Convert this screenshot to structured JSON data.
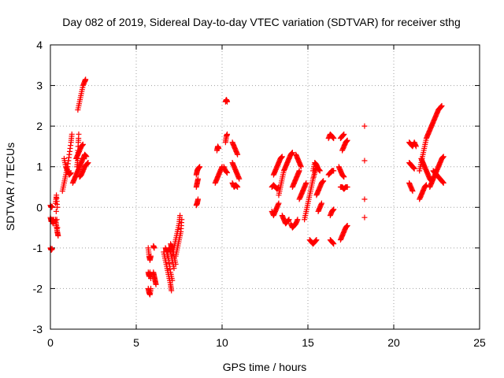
{
  "chart_data": {
    "type": "scatter",
    "title": "Day 082 of 2019, Sidereal Day-to-day VTEC variation (SDTVAR) for receiver sthg",
    "xlabel": "GPS time / hours",
    "ylabel": "SDTVAR / TECUs",
    "xlim": [
      0,
      25
    ],
    "ylim": [
      -3,
      4
    ],
    "xticks": [
      "0",
      "5",
      "10",
      "15",
      "20",
      "25"
    ],
    "yticks": [
      "-3",
      "-2",
      "-1",
      "0",
      "1",
      "2",
      "3",
      "4"
    ],
    "grid": true,
    "marker": "+",
    "color": "#ff0000",
    "segments": [
      [
        [
          0.0,
          -0.25
        ],
        [
          0.05,
          -0.35
        ],
        [
          0.1,
          -0.3
        ],
        [
          0.15,
          -0.4
        ],
        [
          0.2,
          -0.3
        ]
      ],
      [
        [
          0.0,
          0.05
        ],
        [
          0.05,
          0.0
        ],
        [
          0.1,
          0.02
        ]
      ],
      [
        [
          0.0,
          -1.0
        ],
        [
          0.05,
          -1.05
        ],
        [
          0.1,
          -1.02
        ]
      ],
      [
        [
          0.3,
          -0.3
        ],
        [
          0.35,
          -0.45
        ],
        [
          0.4,
          -0.6
        ],
        [
          0.45,
          -0.7
        ],
        [
          0.3,
          0.1
        ],
        [
          0.35,
          0.3
        ],
        [
          0.4,
          0.0
        ]
      ],
      [
        [
          0.7,
          0.4
        ],
        [
          0.8,
          0.6
        ],
        [
          0.9,
          0.8
        ],
        [
          1.0,
          1.0
        ],
        [
          1.1,
          1.3
        ],
        [
          1.2,
          1.6
        ],
        [
          1.25,
          1.8
        ]
      ],
      [
        [
          0.8,
          1.2
        ],
        [
          0.9,
          1.0
        ],
        [
          1.0,
          0.9
        ],
        [
          1.1,
          0.8
        ],
        [
          1.2,
          0.85
        ]
      ],
      [
        [
          1.3,
          0.6
        ],
        [
          1.4,
          0.7
        ],
        [
          1.5,
          0.8
        ],
        [
          1.6,
          0.9
        ],
        [
          1.7,
          1.0
        ],
        [
          1.8,
          1.1
        ],
        [
          1.9,
          1.2
        ],
        [
          2.0,
          1.3
        ],
        [
          2.1,
          1.25
        ]
      ],
      [
        [
          1.6,
          1.4
        ],
        [
          1.65,
          1.8
        ],
        [
          1.6,
          1.2
        ],
        [
          1.55,
          1.0
        ]
      ],
      [
        [
          1.5,
          1.2
        ],
        [
          1.6,
          1.3
        ],
        [
          1.7,
          1.4
        ],
        [
          1.8,
          1.5
        ],
        [
          1.9,
          1.55
        ]
      ],
      [
        [
          1.7,
          0.75
        ],
        [
          1.8,
          0.8
        ],
        [
          1.9,
          0.9
        ],
        [
          2.0,
          1.0
        ],
        [
          2.1,
          1.05
        ],
        [
          2.2,
          1.1
        ]
      ],
      [
        [
          1.6,
          2.4
        ],
        [
          1.7,
          2.6
        ],
        [
          1.8,
          2.8
        ],
        [
          1.9,
          3.0
        ],
        [
          2.0,
          3.1
        ],
        [
          2.05,
          3.15
        ]
      ],
      [
        [
          5.7,
          -1.0
        ],
        [
          5.75,
          -1.2
        ],
        [
          5.8,
          -1.3
        ],
        [
          5.85,
          -1.2
        ]
      ],
      [
        [
          5.7,
          -1.6
        ],
        [
          5.75,
          -1.7
        ],
        [
          5.8,
          -1.6
        ],
        [
          5.85,
          -1.75
        ]
      ],
      [
        [
          5.7,
          -2.0
        ],
        [
          5.75,
          -2.1
        ],
        [
          5.8,
          -2.15
        ],
        [
          5.85,
          -2.0
        ]
      ],
      [
        [
          6.0,
          -1.6
        ],
        [
          6.05,
          -1.7
        ],
        [
          6.1,
          -1.8
        ],
        [
          6.15,
          -1.9
        ]
      ],
      [
        [
          6.0,
          -0.95
        ],
        [
          6.05,
          -1.0
        ]
      ],
      [
        [
          6.6,
          -1.1
        ],
        [
          6.7,
          -1.3
        ],
        [
          6.8,
          -1.5
        ],
        [
          6.9,
          -1.7
        ],
        [
          7.0,
          -1.9
        ],
        [
          7.05,
          -2.05
        ]
      ],
      [
        [
          6.7,
          -1.0
        ],
        [
          6.8,
          -1.1
        ],
        [
          6.9,
          -1.3
        ],
        [
          7.0,
          -1.6
        ],
        [
          7.1,
          -1.8
        ]
      ],
      [
        [
          6.8,
          -1.2
        ],
        [
          6.9,
          -1.0
        ],
        [
          7.0,
          -1.1
        ],
        [
          7.1,
          -1.3
        ],
        [
          7.2,
          -1.5
        ]
      ],
      [
        [
          7.0,
          -0.9
        ],
        [
          7.1,
          -1.0
        ],
        [
          7.2,
          -1.2
        ],
        [
          7.3,
          -1.4
        ]
      ],
      [
        [
          7.1,
          -1.2
        ],
        [
          7.2,
          -1.0
        ],
        [
          7.3,
          -0.8
        ],
        [
          7.4,
          -0.6
        ],
        [
          7.5,
          -0.4
        ],
        [
          7.55,
          -0.2
        ]
      ],
      [
        [
          7.3,
          -1.2
        ],
        [
          7.4,
          -1.0
        ],
        [
          7.5,
          -0.8
        ],
        [
          7.6,
          -0.6
        ],
        [
          7.65,
          -0.3
        ]
      ],
      [
        [
          8.5,
          0.05
        ],
        [
          8.55,
          0.1
        ],
        [
          8.6,
          0.2
        ]
      ],
      [
        [
          8.5,
          0.5
        ],
        [
          8.55,
          0.6
        ],
        [
          8.6,
          0.7
        ]
      ],
      [
        [
          8.5,
          0.8
        ],
        [
          8.55,
          0.9
        ],
        [
          8.6,
          0.95
        ],
        [
          8.7,
          1.0
        ]
      ],
      [
        [
          9.7,
          1.4
        ],
        [
          9.75,
          1.5
        ],
        [
          9.8,
          1.45
        ]
      ],
      [
        [
          9.6,
          0.6
        ],
        [
          9.7,
          0.7
        ],
        [
          9.8,
          0.8
        ],
        [
          9.9,
          0.9
        ],
        [
          10.0,
          1.0
        ]
      ],
      [
        [
          10.1,
          1.0
        ],
        [
          10.2,
          0.9
        ],
        [
          10.3,
          0.85
        ]
      ],
      [
        [
          10.2,
          1.6
        ],
        [
          10.25,
          1.75
        ],
        [
          10.3,
          1.8
        ]
      ],
      [
        [
          10.2,
          2.6
        ],
        [
          10.25,
          2.65
        ],
        [
          10.3,
          2.6
        ]
      ],
      [
        [
          10.6,
          0.6
        ],
        [
          10.7,
          0.5
        ],
        [
          10.8,
          0.55
        ],
        [
          10.9,
          0.5
        ]
      ],
      [
        [
          10.6,
          1.1
        ],
        [
          10.7,
          1.0
        ],
        [
          10.8,
          0.9
        ],
        [
          10.9,
          0.8
        ],
        [
          11.0,
          0.7
        ]
      ],
      [
        [
          10.6,
          1.6
        ],
        [
          10.7,
          1.5
        ],
        [
          10.8,
          1.4
        ],
        [
          10.9,
          1.3
        ]
      ],
      [
        [
          12.9,
          0.5
        ],
        [
          13.0,
          0.55
        ],
        [
          13.1,
          0.5
        ],
        [
          13.2,
          0.45
        ],
        [
          13.3,
          0.5
        ]
      ],
      [
        [
          12.9,
          -0.1
        ],
        [
          13.0,
          -0.2
        ],
        [
          13.1,
          -0.1
        ],
        [
          13.2,
          0.0
        ],
        [
          13.3,
          0.1
        ]
      ],
      [
        [
          13.0,
          0.8
        ],
        [
          13.1,
          0.9
        ],
        [
          13.2,
          1.0
        ],
        [
          13.3,
          1.1
        ],
        [
          13.4,
          1.2
        ],
        [
          13.5,
          1.25
        ]
      ],
      [
        [
          13.3,
          0.3
        ],
        [
          13.4,
          0.5
        ],
        [
          13.5,
          0.7
        ],
        [
          13.6,
          0.9
        ],
        [
          13.7,
          1.0
        ],
        [
          13.8,
          1.1
        ],
        [
          13.9,
          1.2
        ],
        [
          14.0,
          1.3
        ],
        [
          14.1,
          1.35
        ]
      ],
      [
        [
          13.5,
          -0.2
        ],
        [
          13.6,
          -0.3
        ],
        [
          13.7,
          -0.4
        ],
        [
          13.8,
          -0.35
        ],
        [
          13.9,
          -0.3
        ]
      ],
      [
        [
          14.0,
          -0.4
        ],
        [
          14.1,
          -0.5
        ],
        [
          14.2,
          -0.45
        ],
        [
          14.3,
          -0.4
        ],
        [
          14.4,
          -0.3
        ]
      ],
      [
        [
          14.1,
          0.5
        ],
        [
          14.2,
          0.6
        ],
        [
          14.3,
          0.7
        ],
        [
          14.4,
          0.8
        ],
        [
          14.5,
          0.9
        ]
      ],
      [
        [
          14.5,
          0.2
        ],
        [
          14.6,
          0.3
        ],
        [
          14.7,
          0.4
        ],
        [
          14.8,
          0.5
        ],
        [
          14.9,
          0.6
        ]
      ],
      [
        [
          14.3,
          1.3
        ],
        [
          14.4,
          1.2
        ],
        [
          14.5,
          1.1
        ],
        [
          14.6,
          1.0
        ]
      ],
      [
        [
          14.8,
          -0.3
        ],
        [
          14.9,
          -0.1
        ],
        [
          15.0,
          0.1
        ],
        [
          15.1,
          0.3
        ],
        [
          15.2,
          0.5
        ],
        [
          15.3,
          0.7
        ],
        [
          15.4,
          0.85
        ],
        [
          15.5,
          1.0
        ]
      ],
      [
        [
          15.1,
          -0.8
        ],
        [
          15.2,
          -0.85
        ],
        [
          15.3,
          -0.9
        ],
        [
          15.4,
          -0.85
        ],
        [
          15.5,
          -0.8
        ]
      ],
      [
        [
          15.3,
          0.9
        ],
        [
          15.4,
          1.1
        ],
        [
          15.5,
          1.05
        ],
        [
          15.6,
          0.95
        ],
        [
          15.7,
          0.9
        ]
      ],
      [
        [
          15.5,
          0.3
        ],
        [
          15.6,
          0.4
        ],
        [
          15.7,
          0.5
        ],
        [
          15.8,
          0.6
        ],
        [
          15.9,
          0.65
        ]
      ],
      [
        [
          15.6,
          -0.1
        ],
        [
          15.7,
          0.0
        ],
        [
          15.8,
          0.1
        ]
      ],
      [
        [
          16.2,
          1.7
        ],
        [
          16.3,
          1.8
        ],
        [
          16.4,
          1.75
        ],
        [
          16.5,
          1.7
        ]
      ],
      [
        [
          16.2,
          0.8
        ],
        [
          16.3,
          0.85
        ],
        [
          16.4,
          0.9
        ],
        [
          16.5,
          0.9
        ]
      ],
      [
        [
          16.3,
          -0.2
        ],
        [
          16.4,
          -0.1
        ],
        [
          16.5,
          -0.05
        ]
      ],
      [
        [
          16.3,
          -0.8
        ],
        [
          16.4,
          -0.85
        ],
        [
          16.5,
          -0.9
        ]
      ],
      [
        [
          16.9,
          -0.8
        ],
        [
          17.0,
          -0.7
        ],
        [
          17.1,
          -0.6
        ],
        [
          17.2,
          -0.5
        ],
        [
          17.3,
          -0.45
        ]
      ],
      [
        [
          16.9,
          0.5
        ],
        [
          17.0,
          0.5
        ],
        [
          17.1,
          0.45
        ],
        [
          17.2,
          0.5
        ],
        [
          17.3,
          0.5
        ]
      ],
      [
        [
          16.8,
          1.0
        ],
        [
          16.9,
          0.9
        ],
        [
          17.0,
          0.8
        ],
        [
          17.1,
          0.75
        ]
      ],
      [
        [
          17.0,
          1.4
        ],
        [
          17.1,
          1.5
        ],
        [
          17.2,
          1.6
        ],
        [
          17.3,
          1.65
        ]
      ],
      [
        [
          16.9,
          1.7
        ],
        [
          17.0,
          1.75
        ],
        [
          17.1,
          1.8
        ]
      ],
      [
        [
          18.3,
          2.0
        ]
      ],
      [
        [
          18.3,
          1.15
        ]
      ],
      [
        [
          18.3,
          0.2
        ]
      ],
      [
        [
          18.3,
          -0.25
        ]
      ],
      [
        [
          20.9,
          1.6
        ],
        [
          21.0,
          1.55
        ],
        [
          21.1,
          1.5
        ],
        [
          21.2,
          1.6
        ],
        [
          21.3,
          1.5
        ]
      ],
      [
        [
          20.9,
          1.1
        ],
        [
          21.0,
          1.05
        ],
        [
          21.1,
          1.0
        ],
        [
          21.2,
          0.95
        ]
      ],
      [
        [
          20.9,
          0.6
        ],
        [
          21.0,
          0.5
        ],
        [
          21.1,
          0.4
        ]
      ],
      [
        [
          21.5,
          0.2
        ],
        [
          21.6,
          0.3
        ],
        [
          21.7,
          0.4
        ],
        [
          21.8,
          0.5
        ],
        [
          21.9,
          0.55
        ]
      ],
      [
        [
          21.5,
          0.9
        ],
        [
          21.6,
          1.1
        ],
        [
          21.7,
          1.3
        ],
        [
          21.8,
          1.5
        ],
        [
          21.9,
          1.7
        ],
        [
          22.0,
          1.8
        ]
      ],
      [
        [
          21.6,
          1.2
        ],
        [
          21.7,
          1.1
        ],
        [
          21.8,
          1.0
        ],
        [
          21.9,
          0.9
        ],
        [
          22.0,
          0.8
        ],
        [
          22.1,
          0.7
        ],
        [
          22.2,
          0.65
        ]
      ],
      [
        [
          22.0,
          1.8
        ],
        [
          22.1,
          1.9
        ],
        [
          22.2,
          2.0
        ],
        [
          22.3,
          2.1
        ],
        [
          22.4,
          2.2
        ],
        [
          22.5,
          2.3
        ],
        [
          22.6,
          2.4
        ],
        [
          22.7,
          2.45
        ],
        [
          22.8,
          2.5
        ]
      ],
      [
        [
          22.1,
          0.5
        ],
        [
          22.2,
          0.6
        ],
        [
          22.3,
          0.7
        ],
        [
          22.4,
          0.8
        ],
        [
          22.5,
          0.9
        ],
        [
          22.6,
          1.0
        ],
        [
          22.7,
          1.1
        ],
        [
          22.8,
          1.2
        ],
        [
          22.9,
          1.25
        ]
      ],
      [
        [
          22.3,
          0.9
        ],
        [
          22.4,
          0.85
        ],
        [
          22.5,
          0.8
        ],
        [
          22.6,
          0.75
        ],
        [
          22.7,
          0.7
        ],
        [
          22.8,
          0.65
        ],
        [
          22.9,
          0.6
        ]
      ]
    ]
  }
}
